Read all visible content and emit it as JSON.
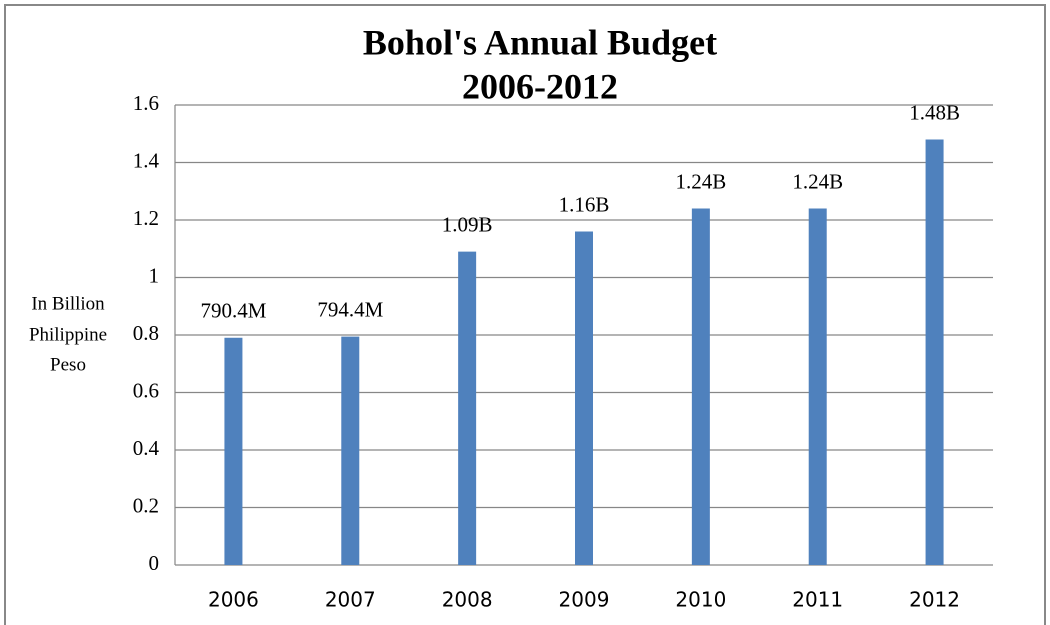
{
  "chart_data": {
    "type": "bar",
    "title": [
      "Bohol's Annual Budget",
      "2006-2012"
    ],
    "y_label": [
      "In Billion",
      "Philippine",
      "Peso"
    ],
    "categories": [
      "2006",
      "2007",
      "2008",
      "2009",
      "2010",
      "2011",
      "2012"
    ],
    "values": [
      0.7904,
      0.7944,
      1.09,
      1.16,
      1.24,
      1.24,
      1.48
    ],
    "value_labels": [
      "790.4M",
      "794.4M",
      "1.09B",
      "1.16B",
      "1.24B",
      "1.24B",
      "1.48B"
    ],
    "color": "#4f81bd",
    "ylim": [
      0,
      1.6
    ],
    "yticks": [
      0,
      0.2,
      0.4,
      0.6,
      0.8,
      1,
      1.2,
      1.4,
      1.6
    ],
    "grid": true
  }
}
